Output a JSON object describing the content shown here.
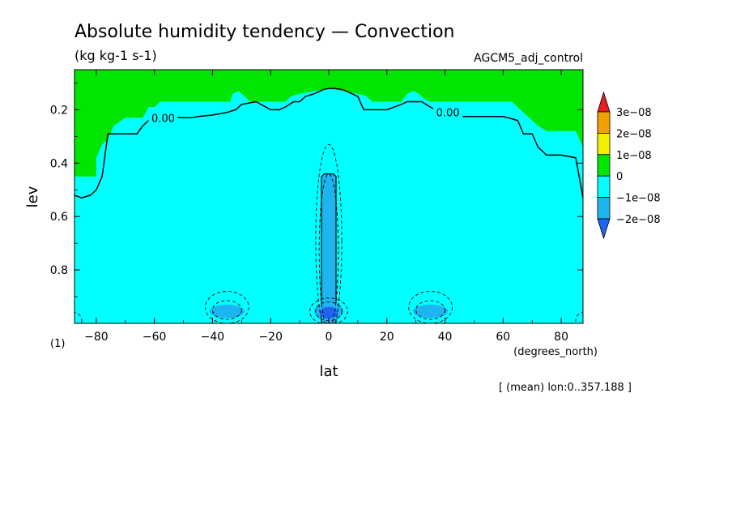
{
  "chart_data": {
    "type": "heatmap",
    "title": "Absolute humidity tendency — Convection",
    "units": "(kg kg-1 s-1)",
    "run_label": "AGCM5_adj_control",
    "xlabel": "lat",
    "x_unit_label": "(degrees_north)",
    "ylabel": "lev",
    "y_unit_label": "(1)",
    "xlim": [
      -87.5,
      87.5
    ],
    "ylim": [
      0.05,
      1.0
    ],
    "y_inverted": true,
    "x_ticks": [
      -80,
      -60,
      -40,
      -20,
      0,
      20,
      40,
      60,
      80
    ],
    "x_tick_labels": [
      "−80",
      "−60",
      "−40",
      "−20",
      "0",
      "20",
      "40",
      "60",
      "80"
    ],
    "y_ticks": [
      0.2,
      0.4,
      0.6,
      0.8
    ],
    "y_tick_labels": [
      "0.2",
      "0.4",
      "0.6",
      "0.8"
    ],
    "colorbar": {
      "levels": [
        -2e-08,
        -1e-08,
        0,
        1e-08,
        2e-08,
        3e-08
      ],
      "labels": [
        "−2e−08",
        "−1e−08",
        "0",
        "1e−08",
        "2e−08",
        "3e−08"
      ],
      "colors": [
        "#1e64f0",
        "#1eb4f0",
        "#00ffff",
        "#00e600",
        "#f0f000",
        "#f0a000",
        "#e61e1e"
      ]
    },
    "contour_labels": [
      "0.00",
      "0.00"
    ],
    "zero_contour": {
      "lat": [
        -87.5,
        -85,
        -82,
        -80,
        -78,
        -76,
        -70,
        -66,
        -64,
        -62,
        -60,
        -58,
        -55,
        -50,
        -47,
        -45,
        -40,
        -35,
        -32,
        -30,
        -25,
        -20,
        -17,
        -15,
        -12,
        -10,
        -8,
        -5,
        -2,
        0,
        2,
        5,
        8,
        10,
        12,
        15,
        17,
        20,
        25,
        27,
        30,
        32,
        35,
        40,
        45,
        50,
        55,
        60,
        65,
        67,
        70,
        72,
        75,
        80,
        85,
        87.5
      ],
      "lev": [
        0.52,
        0.53,
        0.52,
        0.5,
        0.45,
        0.29,
        0.29,
        0.29,
        0.26,
        0.24,
        0.23,
        0.225,
        0.225,
        0.23,
        0.23,
        0.225,
        0.22,
        0.21,
        0.2,
        0.18,
        0.17,
        0.2,
        0.2,
        0.19,
        0.17,
        0.17,
        0.15,
        0.14,
        0.125,
        0.12,
        0.12,
        0.125,
        0.14,
        0.15,
        0.2,
        0.2,
        0.2,
        0.2,
        0.18,
        0.17,
        0.17,
        0.17,
        0.19,
        0.22,
        0.225,
        0.225,
        0.225,
        0.225,
        0.24,
        0.29,
        0.29,
        0.34,
        0.37,
        0.37,
        0.38,
        0.53
      ]
    },
    "regions": [
      {
        "name": "0 to 1e-08",
        "color": "#00e600",
        "note": "upper levels and high latitudes"
      },
      {
        "name": "-1e-08 to 0",
        "color": "#00ffff",
        "note": "most of the domain"
      },
      {
        "name": "-2e-08 to -1e-08",
        "color": "#1eb4f0",
        "note": "equatorial column and near-surface cells at about 35S and 35N"
      },
      {
        "name": "below -2e-08",
        "color": "#1e64f0",
        "note": "equatorial near-surface core"
      }
    ],
    "grid": false
  },
  "annotation": "[ (mean) lon:0..357.188 ]"
}
